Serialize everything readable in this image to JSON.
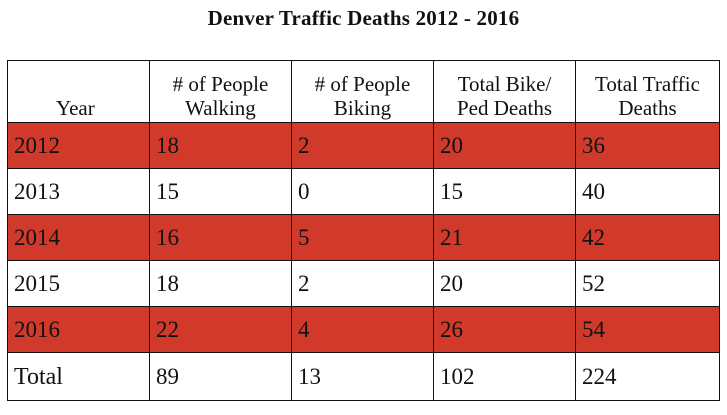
{
  "title": "Denver Traffic Deaths 2012 - 2016",
  "colors": {
    "shaded_row": "#d13a2a",
    "border": "#111111",
    "background": "#ffffff"
  },
  "chart_data": {
    "type": "table",
    "title": "Denver Traffic Deaths 2012 - 2016",
    "columns": [
      "Year",
      "# of People Walking",
      "# of People Biking",
      "Total Bike/ Ped Deaths",
      "Total Traffic Deaths"
    ],
    "rows": [
      {
        "year": "2012",
        "walking": 18,
        "biking": 2,
        "bike_ped": 20,
        "total_traffic": 36,
        "shaded": true
      },
      {
        "year": "2013",
        "walking": 15,
        "biking": 0,
        "bike_ped": 15,
        "total_traffic": 40,
        "shaded": false
      },
      {
        "year": "2014",
        "walking": 16,
        "biking": 5,
        "bike_ped": 21,
        "total_traffic": 42,
        "shaded": true
      },
      {
        "year": "2015",
        "walking": 18,
        "biking": 2,
        "bike_ped": 20,
        "total_traffic": 52,
        "shaded": false
      },
      {
        "year": "2016",
        "walking": 22,
        "biking": 4,
        "bike_ped": 26,
        "total_traffic": 54,
        "shaded": true
      }
    ],
    "total_row": {
      "label": "Total",
      "walking": 89,
      "biking": 13,
      "bike_ped": 102,
      "total_traffic": 224
    }
  }
}
